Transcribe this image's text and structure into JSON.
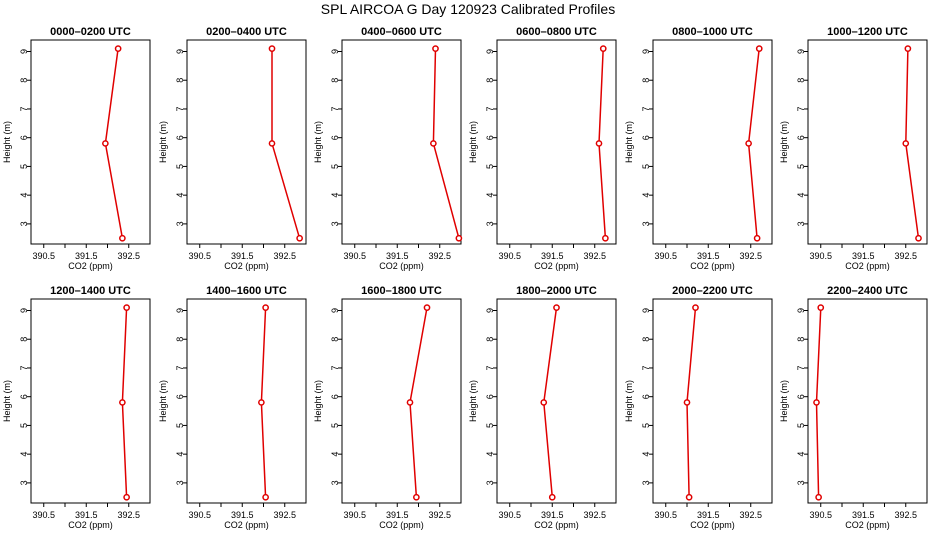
{
  "figure": {
    "title": "SPL AIRCOA G  Day 120923  Calibrated Profiles"
  },
  "colors": {
    "series": "#e00000",
    "frame": "#000000"
  },
  "chart_data": [
    {
      "type": "line",
      "title": "0000–0200 UTC",
      "xlabel": "CO2 (ppm)",
      "ylabel": "Height (m)",
      "xlim": [
        390.2,
        393.0
      ],
      "ylim": [
        2.3,
        9.4
      ],
      "xticks": [
        390.5,
        391.5,
        392.5
      ],
      "xticks_unlabeled": [
        391.0,
        392.0
      ],
      "yticks": [
        3,
        4,
        5,
        6,
        7,
        8,
        9
      ],
      "grid": false,
      "series": [
        {
          "x": [
            392.25,
            391.95,
            392.35
          ],
          "y": [
            9.1,
            5.8,
            2.5
          ]
        }
      ]
    },
    {
      "type": "line",
      "title": "0200–0400 UTC",
      "xlabel": "CO2 (ppm)",
      "ylabel": "Height (m)",
      "xlim": [
        390.2,
        393.0
      ],
      "ylim": [
        2.3,
        9.4
      ],
      "xticks": [
        390.5,
        391.5,
        392.5
      ],
      "xticks_unlabeled": [
        391.0,
        392.0
      ],
      "yticks": [
        3,
        4,
        5,
        6,
        7,
        8,
        9
      ],
      "grid": false,
      "series": [
        {
          "x": [
            392.2,
            392.2,
            392.85
          ],
          "y": [
            9.1,
            5.8,
            2.5
          ]
        }
      ]
    },
    {
      "type": "line",
      "title": "0400–0600 UTC",
      "xlabel": "CO2 (ppm)",
      "ylabel": "Height (m)",
      "xlim": [
        390.2,
        393.0
      ],
      "ylim": [
        2.3,
        9.4
      ],
      "xticks": [
        390.5,
        391.5,
        392.5
      ],
      "xticks_unlabeled": [
        391.0,
        392.0
      ],
      "yticks": [
        3,
        4,
        5,
        6,
        7,
        8,
        9
      ],
      "grid": false,
      "series": [
        {
          "x": [
            392.4,
            392.35,
            392.95
          ],
          "y": [
            9.1,
            5.8,
            2.5
          ]
        }
      ]
    },
    {
      "type": "line",
      "title": "0600–0800 UTC",
      "xlabel": "CO2 (ppm)",
      "ylabel": "Height (m)",
      "xlim": [
        390.2,
        393.0
      ],
      "ylim": [
        2.3,
        9.4
      ],
      "xticks": [
        390.5,
        391.5,
        392.5
      ],
      "xticks_unlabeled": [
        391.0,
        392.0
      ],
      "yticks": [
        3,
        4,
        5,
        6,
        7,
        8,
        9
      ],
      "grid": false,
      "series": [
        {
          "x": [
            392.7,
            392.6,
            392.75
          ],
          "y": [
            9.1,
            5.8,
            2.5
          ]
        }
      ]
    },
    {
      "type": "line",
      "title": "0800–1000 UTC",
      "xlabel": "CO2 (ppm)",
      "ylabel": "Height (m)",
      "xlim": [
        390.2,
        393.0
      ],
      "ylim": [
        2.3,
        9.4
      ],
      "xticks": [
        390.5,
        391.5,
        392.5
      ],
      "xticks_unlabeled": [
        391.0,
        392.0
      ],
      "yticks": [
        3,
        4,
        5,
        6,
        7,
        8,
        9
      ],
      "grid": false,
      "series": [
        {
          "x": [
            392.7,
            392.45,
            392.65
          ],
          "y": [
            9.1,
            5.8,
            2.5
          ]
        }
      ]
    },
    {
      "type": "line",
      "title": "1000–1200 UTC",
      "xlabel": "CO2 (ppm)",
      "ylabel": "Height (m)",
      "xlim": [
        390.2,
        393.0
      ],
      "ylim": [
        2.3,
        9.4
      ],
      "xticks": [
        390.5,
        391.5,
        392.5
      ],
      "xticks_unlabeled": [
        391.0,
        392.0
      ],
      "yticks": [
        3,
        4,
        5,
        6,
        7,
        8,
        9
      ],
      "grid": false,
      "series": [
        {
          "x": [
            392.55,
            392.5,
            392.8
          ],
          "y": [
            9.1,
            5.8,
            2.5
          ]
        }
      ]
    },
    {
      "type": "line",
      "title": "1200–1400 UTC",
      "xlabel": "CO2 (ppm)",
      "ylabel": "Height (m)",
      "xlim": [
        390.2,
        393.0
      ],
      "ylim": [
        2.3,
        9.4
      ],
      "xticks": [
        390.5,
        391.5,
        392.5
      ],
      "xticks_unlabeled": [
        391.0,
        392.0
      ],
      "yticks": [
        3,
        4,
        5,
        6,
        7,
        8,
        9
      ],
      "grid": false,
      "series": [
        {
          "x": [
            392.45,
            392.35,
            392.45
          ],
          "y": [
            9.1,
            5.8,
            2.5
          ]
        }
      ]
    },
    {
      "type": "line",
      "title": "1400–1600 UTC",
      "xlabel": "CO2 (ppm)",
      "ylabel": "Height (m)",
      "xlim": [
        390.2,
        393.0
      ],
      "ylim": [
        2.3,
        9.4
      ],
      "xticks": [
        390.5,
        391.5,
        392.5
      ],
      "xticks_unlabeled": [
        391.0,
        392.0
      ],
      "yticks": [
        3,
        4,
        5,
        6,
        7,
        8,
        9
      ],
      "grid": false,
      "series": [
        {
          "x": [
            392.05,
            391.95,
            392.05
          ],
          "y": [
            9.1,
            5.8,
            2.5
          ]
        }
      ]
    },
    {
      "type": "line",
      "title": "1600–1800 UTC",
      "xlabel": "CO2 (ppm)",
      "ylabel": "Height (m)",
      "xlim": [
        390.2,
        393.0
      ],
      "ylim": [
        2.3,
        9.4
      ],
      "xticks": [
        390.5,
        391.5,
        392.5
      ],
      "xticks_unlabeled": [
        391.0,
        392.0
      ],
      "yticks": [
        3,
        4,
        5,
        6,
        7,
        8,
        9
      ],
      "grid": false,
      "series": [
        {
          "x": [
            392.2,
            391.8,
            391.95
          ],
          "y": [
            9.1,
            5.8,
            2.5
          ]
        }
      ]
    },
    {
      "type": "line",
      "title": "1800–2000 UTC",
      "xlabel": "CO2 (ppm)",
      "ylabel": "Height (m)",
      "xlim": [
        390.2,
        393.0
      ],
      "ylim": [
        2.3,
        9.4
      ],
      "xticks": [
        390.5,
        391.5,
        392.5
      ],
      "xticks_unlabeled": [
        391.0,
        392.0
      ],
      "yticks": [
        3,
        4,
        5,
        6,
        7,
        8,
        9
      ],
      "grid": false,
      "series": [
        {
          "x": [
            391.6,
            391.3,
            391.5
          ],
          "y": [
            9.1,
            5.8,
            2.5
          ]
        }
      ]
    },
    {
      "type": "line",
      "title": "2000–2200 UTC",
      "xlabel": "CO2 (ppm)",
      "ylabel": "Height (m)",
      "xlim": [
        390.2,
        393.0
      ],
      "ylim": [
        2.3,
        9.4
      ],
      "xticks": [
        390.5,
        391.5,
        392.5
      ],
      "xticks_unlabeled": [
        391.0,
        392.0
      ],
      "yticks": [
        3,
        4,
        5,
        6,
        7,
        8,
        9
      ],
      "grid": false,
      "series": [
        {
          "x": [
            391.2,
            391.0,
            391.05
          ],
          "y": [
            9.1,
            5.8,
            2.5
          ]
        }
      ]
    },
    {
      "type": "line",
      "title": "2200–2400 UTC",
      "xlabel": "CO2 (ppm)",
      "ylabel": "Height (m)",
      "xlim": [
        390.2,
        393.0
      ],
      "ylim": [
        2.3,
        9.4
      ],
      "xticks": [
        390.5,
        391.5,
        392.5
      ],
      "xticks_unlabeled": [
        391.0,
        392.0
      ],
      "yticks": [
        3,
        4,
        5,
        6,
        7,
        8,
        9
      ],
      "grid": false,
      "series": [
        {
          "x": [
            390.5,
            390.4,
            390.45
          ],
          "y": [
            9.1,
            5.8,
            2.5
          ]
        }
      ]
    }
  ]
}
